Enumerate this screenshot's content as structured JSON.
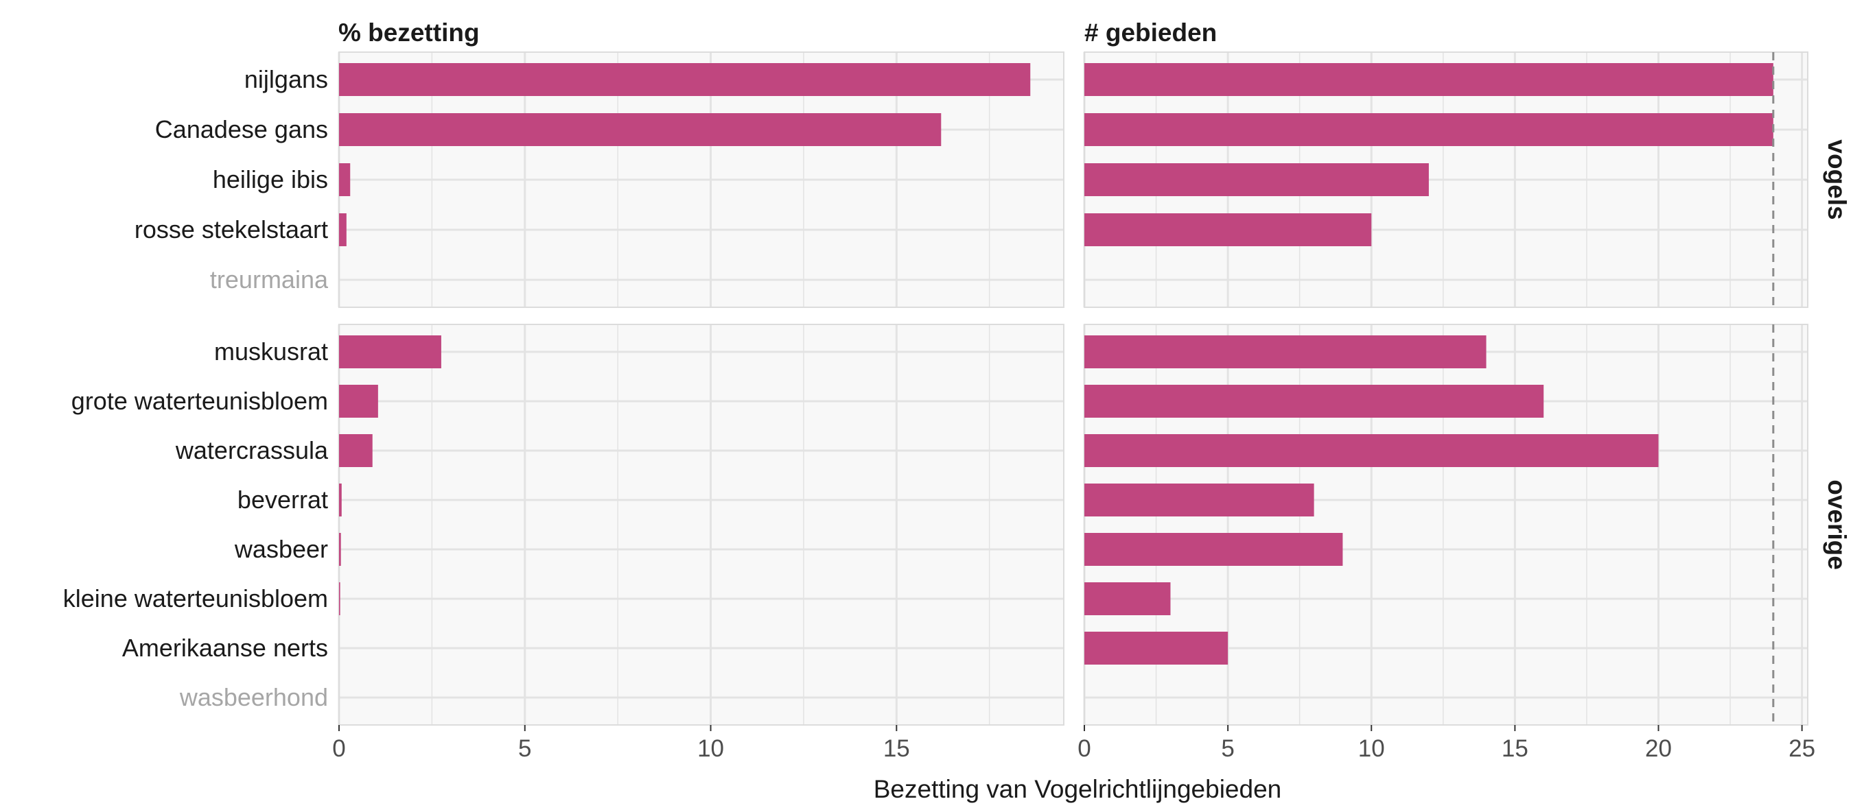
{
  "chart_data": {
    "type": "bar",
    "orientation": "horizontal",
    "xlabel": "Bezetting van Vogelrichtlijngebieden",
    "bar_color": "#c0467f",
    "panel_background": "#f8f8f8",
    "grid_color": "#e3e3e3",
    "muted_label_color": "#a6a6a6",
    "reference_line": {
      "x": 24,
      "style": "dashed",
      "color": "#8c8c8c",
      "applies_to": "# gebieden"
    },
    "columns": [
      {
        "title": "% bezetting",
        "xlim": [
          0,
          19.5
        ],
        "ticks": [
          0,
          5,
          10,
          15
        ]
      },
      {
        "title": "# gebieden",
        "xlim": [
          0,
          25.2
        ],
        "ticks": [
          0,
          5,
          10,
          15,
          20,
          25
        ]
      }
    ],
    "facets": [
      {
        "name": "vogels",
        "categories": [
          "nijlgans",
          "Canadese gans",
          "heilige ibis",
          "rosse stekelstaart",
          "treurmaina"
        ],
        "muted": [
          false,
          false,
          false,
          false,
          true
        ],
        "series": [
          {
            "name": "% bezetting",
            "values": [
              18.6,
              16.2,
              0.3,
              0.2,
              0
            ]
          },
          {
            "name": "# gebieden",
            "values": [
              24,
              24,
              12,
              10,
              0
            ]
          }
        ]
      },
      {
        "name": "overige",
        "categories": [
          "muskusrat",
          "grote waterteunisbloem",
          "watercrassula",
          "beverrat",
          "wasbeer",
          "kleine waterteunisbloem",
          "Amerikaanse nerts",
          "wasbeerhond"
        ],
        "muted": [
          false,
          false,
          false,
          false,
          false,
          false,
          false,
          true
        ],
        "series": [
          {
            "name": "% bezetting",
            "values": [
              2.75,
              1.05,
              0.9,
              0.07,
              0.05,
              0.03,
              0,
              0
            ]
          },
          {
            "name": "# gebieden",
            "values": [
              14,
              16,
              20,
              8,
              9,
              3,
              5,
              0
            ]
          }
        ]
      }
    ]
  }
}
